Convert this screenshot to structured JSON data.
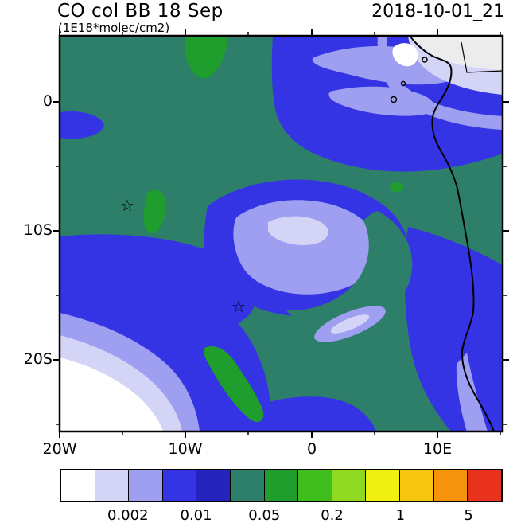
{
  "header": {
    "title": "CO col BB 18 Sep",
    "subtitle": "(1E18*molec/cm2)",
    "datetime": "2018-10-01_21"
  },
  "axes": {
    "y_ticks": [
      {
        "label": "0"
      },
      {
        "label": "10S"
      },
      {
        "label": "20S"
      }
    ],
    "x_ticks": [
      {
        "label": "20W"
      },
      {
        "label": "10W"
      },
      {
        "label": "0"
      },
      {
        "label": "10E"
      }
    ]
  },
  "map": {
    "star_char": "☆",
    "land_fill": "#ececec"
  },
  "colorbar": {
    "palette": [
      "#ffffff",
      "#d4d4f7",
      "#9f9ff1",
      "#3434e4",
      "#2424bc",
      "#2e7f6a",
      "#1f9e2e",
      "#3fbe1e",
      "#8fd923",
      "#eff012",
      "#f6c50f",
      "#f5930f",
      "#e8321c"
    ],
    "tick_labels": [
      "0.002",
      "0.01",
      "0.05",
      "0.2",
      "1",
      "5"
    ],
    "tick_pos_pct": [
      15.4,
      30.8,
      46.2,
      61.5,
      76.9,
      92.3
    ]
  },
  "chart_data": {
    "type": "heatmap",
    "subtype": "filled_contour_map",
    "title": "CO col BB 18 Sep",
    "units": "1E18*molec/cm2",
    "timestamp": "2018-10-01_21",
    "region": "Southeast Atlantic and western Africa",
    "x_axis": {
      "kind": "longitude",
      "tick_labels": [
        "20W",
        "10W",
        "0",
        "10E"
      ],
      "tick_values_deg": [
        -20,
        -10,
        0,
        10
      ],
      "range_deg": [
        -20,
        15.2
      ]
    },
    "y_axis": {
      "kind": "latitude",
      "tick_labels": [
        "0",
        "10S",
        "20S"
      ],
      "tick_values_deg": [
        0,
        -10,
        -20
      ],
      "range_deg": [
        5.1,
        -25.6
      ]
    },
    "colorbar_labeled_levels": [
      0.002,
      0.01,
      0.05,
      0.2,
      1,
      5
    ],
    "palette_hex": [
      "#ffffff",
      "#d4d4f7",
      "#9f9ff1",
      "#3434e4",
      "#2424bc",
      "#2e7f6a",
      "#1f9e2e",
      "#3fbe1e",
      "#8fd923",
      "#eff012",
      "#f6c50f",
      "#f5930f",
      "#e8321c"
    ],
    "legend_position": "bottom",
    "grid": false,
    "markers": [
      {
        "symbol": "star",
        "lon_deg": -14.7,
        "lat_deg": -8
      },
      {
        "symbol": "star",
        "lon_deg": -6,
        "lat_deg": -16
      }
    ],
    "features": [
      {
        "name": "background-field",
        "approx_value_range": [
          0.02,
          0.05
        ],
        "color": "teal",
        "description": "dominant teal CO field over most of the domain"
      },
      {
        "name": "north-equatorial-plume",
        "approx_value_range": [
          0.005,
          0.02
        ],
        "color": "blue",
        "description": "large blue region north of about 3S extending to the African coast"
      },
      {
        "name": "north-low-streaks",
        "approx_value_range": [
          0.002,
          0.005
        ],
        "color": "periwinkle",
        "description": "light purple streaks embedded in the northern blue region"
      },
      {
        "name": "northeast-minimum",
        "approx_value_range": [
          0,
          0.002
        ],
        "color": "white/lavender",
        "description": "very low values over land in the far north-east corner"
      },
      {
        "name": "central-gyre",
        "approx_value_range": [
          0.002,
          0.01
        ],
        "color": "periwinkle ringed by blue",
        "description": "comma-shaped low anomaly centred near 8W, 10S"
      },
      {
        "name": "low-eye",
        "approx_value_range": [
          0.002,
          0.005
        ],
        "color": "periwinkle",
        "description": "small elongated minimum near 2W, 14S"
      },
      {
        "name": "west-band",
        "approx_value_range": [
          0.005,
          0.02
        ],
        "color": "blue",
        "description": "blue band entering from the west edge near 13S and feeding the gyre"
      },
      {
        "name": "southeast-coastal-band",
        "approx_value_range": [
          0.005,
          0.02
        ],
        "color": "blue",
        "description": "blue band along the Angola coast to the bottom-right corner"
      },
      {
        "name": "southwest-minimum",
        "approx_value_range": [
          0,
          0.002
        ],
        "color": "white with lavender fringes",
        "description": "clean-air corner in the far south-west with concentric fringes"
      },
      {
        "name": "enhanced-patches",
        "approx_value_range": [
          0.05,
          0.1
        ],
        "color": "green",
        "description": "small enhanced streaks near 14W 7S, near 6W 17S, and at the north edge near 9W"
      }
    ]
  }
}
